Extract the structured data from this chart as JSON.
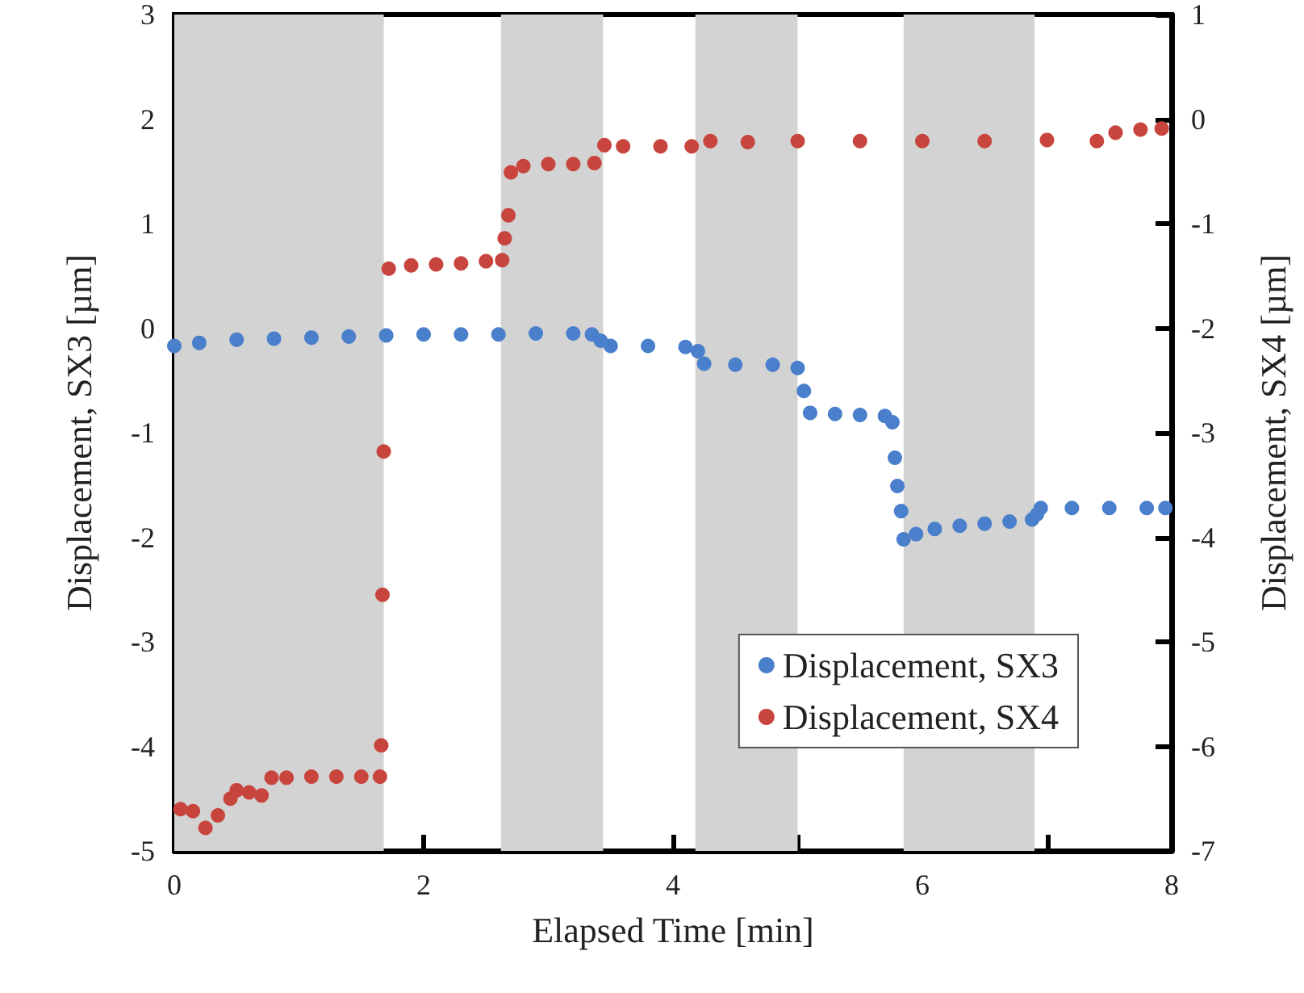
{
  "chart_data": {
    "type": "scatter",
    "xlabel": "Elapsed Time [min]",
    "ylabel": "Displacement, SX3 [µm]",
    "y2label": "Displacement, SX4 [µm]",
    "xlim": [
      0,
      8
    ],
    "xticks": [
      0,
      {
        "value": 1,
        "label": null
      },
      2,
      {
        "value": 3,
        "label": null
      },
      4,
      {
        "value": 5,
        "label": null
      },
      6,
      {
        "value": 7,
        "label": null
      },
      8
    ],
    "ylim": [
      -5,
      3
    ],
    "yticks": [
      -5,
      -4,
      -3,
      -2,
      -1,
      0,
      1,
      2,
      3
    ],
    "y2lim": [
      -7,
      1
    ],
    "y2ticks": [
      -7,
      -6,
      -5,
      -4,
      -3,
      -2,
      -1,
      0,
      1
    ],
    "grid": false,
    "legend": "bottom right",
    "marker": "circle",
    "bands": [
      {
        "axis": "x",
        "from": 0,
        "to": 1.68,
        "color": "#d3d3d3"
      },
      {
        "axis": "x",
        "from": 2.62,
        "to": 3.44,
        "color": "#d3d3d3"
      },
      {
        "axis": "x",
        "from": 4.18,
        "to": 5.0,
        "color": "#d3d3d3"
      },
      {
        "axis": "x",
        "from": 5.85,
        "to": 6.9,
        "color": "#d3d3d3"
      }
    ],
    "series": [
      {
        "name": "Displacement, SX3",
        "color": "#4a7fcc",
        "x": [
          0,
          0.2,
          0.5,
          0.8,
          1.1,
          1.4,
          1.7,
          2.0,
          2.3,
          2.6,
          2.9,
          3.2,
          3.35,
          3.42,
          3.5,
          3.8,
          4.1,
          4.2,
          4.25,
          4.5,
          4.8,
          5.0,
          5.05,
          5.1,
          5.3,
          5.5,
          5.7,
          5.76,
          5.78,
          5.8,
          5.83,
          5.85,
          5.95,
          6.1,
          6.3,
          6.5,
          6.7,
          6.88,
          6.92,
          6.95,
          7.2,
          7.5,
          7.8,
          7.95
        ],
        "values": [
          -0.17,
          -0.14,
          -0.11,
          -0.1,
          -0.09,
          -0.08,
          -0.07,
          -0.06,
          -0.06,
          -0.06,
          -0.05,
          -0.05,
          -0.06,
          -0.12,
          -0.17,
          -0.17,
          -0.18,
          -0.22,
          -0.34,
          -0.35,
          -0.35,
          -0.38,
          -0.6,
          -0.81,
          -0.82,
          -0.83,
          -0.84,
          -0.9,
          -1.24,
          -1.51,
          -1.75,
          -2.02,
          -1.97,
          -1.92,
          -1.89,
          -1.87,
          -1.85,
          -1.83,
          -1.78,
          -1.72,
          -1.72,
          -1.72,
          -1.72,
          -1.72
        ]
      },
      {
        "name": "Displacement, SX4",
        "color": "#c8453e",
        "axis": "y2",
        "x": [
          0.05,
          0.15,
          0.25,
          0.35,
          0.45,
          0.5,
          0.6,
          0.7,
          0.78,
          0.9,
          1.1,
          1.3,
          1.5,
          1.65,
          1.66,
          1.67,
          1.68,
          1.72,
          1.9,
          2.1,
          2.3,
          2.5,
          2.63,
          2.65,
          2.68,
          2.7,
          2.8,
          3.0,
          3.2,
          3.37,
          3.45,
          3.6,
          3.9,
          4.15,
          4.3,
          4.6,
          5.0,
          5.5,
          6.0,
          6.5,
          7.0,
          7.4,
          7.55,
          7.75,
          7.92
        ],
        "values": [
          -6.6,
          -6.62,
          -6.78,
          -6.66,
          -6.5,
          -6.42,
          -6.44,
          -6.47,
          -6.3,
          -6.3,
          -6.29,
          -6.29,
          -6.29,
          -6.29,
          -5.99,
          -4.55,
          -3.18,
          -1.43,
          -1.4,
          -1.39,
          -1.38,
          -1.36,
          -1.35,
          -1.14,
          -0.92,
          -0.51,
          -0.45,
          -0.43,
          -0.43,
          -0.42,
          -0.25,
          -0.26,
          -0.26,
          -0.26,
          -0.21,
          -0.22,
          -0.21,
          -0.21,
          -0.21,
          -0.21,
          -0.2,
          -0.21,
          -0.13,
          -0.1,
          -0.09
        ]
      }
    ]
  }
}
